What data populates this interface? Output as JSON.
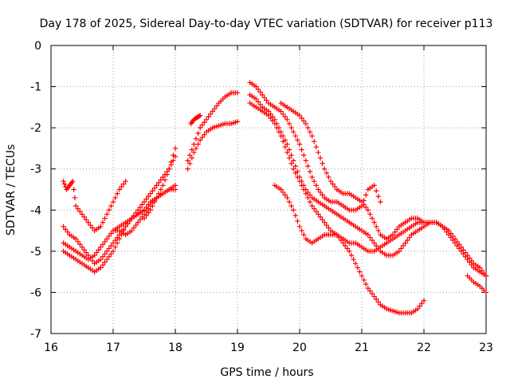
{
  "chart_data": {
    "type": "scatter",
    "title": "Day 178 of 2025, Sidereal Day-to-day VTEC variation (SDTVAR) for receiver p113",
    "xlabel": "GPS time / hours",
    "ylabel": "SDTVAR / TECUs",
    "xlim": [
      16,
      23
    ],
    "ylim": [
      -7,
      0
    ],
    "xticks": [
      16,
      17,
      18,
      19,
      20,
      21,
      22,
      23
    ],
    "yticks": [
      0,
      -1,
      -2,
      -3,
      -4,
      -5,
      -6,
      -7
    ],
    "xtick_labels": [
      "16",
      "17",
      "18",
      "19",
      "20",
      "21",
      "22",
      "23"
    ],
    "ytick_labels": [
      "0",
      "-1",
      "-2",
      "-3",
      "-4",
      "-5",
      "-6",
      "-7"
    ],
    "grid": true,
    "marker": "+",
    "color": "#ff0000",
    "series": [
      {
        "name": "s1",
        "x": [
          16.2,
          16.3,
          16.4,
          16.5,
          16.6,
          16.7,
          16.8,
          16.9,
          17.0,
          17.1,
          17.2,
          17.3,
          17.4,
          17.5,
          17.6,
          17.7,
          17.8,
          17.9,
          18.0
        ],
        "y": [
          -4.4,
          -4.6,
          -4.7,
          -4.9,
          -5.1,
          -5.3,
          -5.2,
          -5.0,
          -4.8,
          -4.6,
          -4.4,
          -4.2,
          -4.0,
          -3.8,
          -3.6,
          -3.4,
          -3.2,
          -3.0,
          -2.7
        ]
      },
      {
        "name": "s2",
        "x": [
          16.2,
          16.25,
          16.3,
          16.35,
          16.4,
          16.5,
          16.6,
          16.7,
          16.8,
          16.9,
          17.0,
          17.1,
          17.2
        ],
        "y": [
          -3.3,
          -3.5,
          -3.4,
          -3.3,
          -3.9,
          -4.1,
          -4.3,
          -4.5,
          -4.4,
          -4.1,
          -3.8,
          -3.5,
          -3.3
        ]
      },
      {
        "name": "s3",
        "x": [
          16.2,
          16.3,
          16.4,
          16.5,
          16.6,
          16.7,
          16.8,
          16.9,
          17.0,
          17.1,
          17.2,
          17.3,
          17.4,
          17.5,
          17.6,
          17.7,
          17.8,
          17.9,
          18.0
        ],
        "y": [
          -4.8,
          -4.9,
          -5.0,
          -5.1,
          -5.2,
          -5.1,
          -4.9,
          -4.7,
          -4.5,
          -4.4,
          -4.3,
          -4.2,
          -4.1,
          -4.0,
          -3.8,
          -3.7,
          -3.6,
          -3.5,
          -3.4
        ]
      },
      {
        "name": "s4",
        "x": [
          16.2,
          16.3,
          16.4,
          16.5,
          16.6,
          16.7,
          16.8,
          16.9,
          17.0,
          17.1,
          17.2,
          17.3,
          17.4,
          17.5
        ],
        "y": [
          -5.0,
          -5.1,
          -5.2,
          -5.3,
          -5.4,
          -5.5,
          -5.4,
          -5.2,
          -5.0,
          -4.7,
          -4.4,
          -4.2,
          -4.1,
          -4.0
        ]
      },
      {
        "name": "s5",
        "x": [
          17.0,
          17.1,
          17.2,
          17.3,
          17.4,
          17.5,
          17.6,
          17.7,
          17.8,
          17.9,
          18.0
        ],
        "y": [
          -4.5,
          -4.5,
          -4.6,
          -4.5,
          -4.3,
          -4.1,
          -3.9,
          -3.7,
          -3.6,
          -3.5,
          -3.5
        ]
      },
      {
        "name": "s6",
        "x": [
          17.5,
          17.6,
          17.7,
          17.8,
          17.9,
          18.0
        ],
        "y": [
          -4.2,
          -4.0,
          -3.7,
          -3.4,
          -3.0,
          -2.5
        ]
      },
      {
        "name": "s7",
        "x": [
          18.2,
          18.3,
          18.4,
          18.5,
          18.6,
          18.7,
          18.8,
          18.9,
          19.0
        ],
        "y": [
          -2.8,
          -2.4,
          -2.0,
          -1.8,
          -1.6,
          -1.4,
          -1.25,
          -1.15,
          -1.15
        ]
      },
      {
        "name": "s8",
        "x": [
          18.2,
          18.3,
          18.4,
          18.5,
          18.6,
          18.7,
          18.8,
          18.9,
          19.0
        ],
        "y": [
          -3.0,
          -2.6,
          -2.3,
          -2.1,
          -2.0,
          -1.95,
          -1.9,
          -1.9,
          -1.85
        ]
      },
      {
        "name": "s9",
        "x": [
          18.25,
          18.3,
          18.35,
          18.4
        ],
        "y": [
          -1.9,
          -1.8,
          -1.75,
          -1.7
        ]
      },
      {
        "name": "s10",
        "x": [
          19.2,
          19.3,
          19.4,
          19.5,
          19.6,
          19.7,
          19.8,
          19.9,
          20.0,
          20.1,
          20.2,
          20.3,
          20.4,
          20.5,
          20.6,
          20.7,
          20.8,
          20.9,
          21.0,
          21.1,
          21.2,
          21.3,
          21.4,
          21.5,
          21.6,
          21.7,
          21.8,
          21.9,
          22.0,
          22.1,
          22.2,
          22.3,
          22.4,
          22.5,
          22.6,
          22.7,
          22.8,
          22.9,
          23.0
        ],
        "y": [
          -1.2,
          -1.3,
          -1.5,
          -1.6,
          -1.8,
          -2.1,
          -2.4,
          -2.8,
          -3.2,
          -3.5,
          -3.7,
          -3.8,
          -3.9,
          -4.0,
          -4.1,
          -4.2,
          -4.3,
          -4.4,
          -4.5,
          -4.6,
          -4.8,
          -5.0,
          -5.1,
          -5.1,
          -5.0,
          -4.8,
          -4.6,
          -4.5,
          -4.4,
          -4.3,
          -4.3,
          -4.4,
          -4.5,
          -4.7,
          -4.9,
          -5.1,
          -5.3,
          -5.4,
          -5.6
        ]
      },
      {
        "name": "s11",
        "x": [
          19.2,
          19.3,
          19.4,
          19.5,
          19.6,
          19.7,
          19.8,
          19.9,
          20.0,
          20.1,
          20.2,
          20.3,
          20.4,
          20.5,
          20.6,
          20.7,
          20.8,
          20.9,
          21.0,
          21.1,
          21.2,
          21.3,
          21.4,
          21.5,
          21.6,
          21.7,
          21.8,
          21.9,
          22.0
        ],
        "y": [
          -1.4,
          -1.5,
          -1.6,
          -1.7,
          -1.9,
          -2.2,
          -2.6,
          -3.0,
          -3.3,
          -3.6,
          -3.9,
          -4.1,
          -4.3,
          -4.5,
          -4.6,
          -4.8,
          -5.0,
          -5.3,
          -5.6,
          -5.9,
          -6.1,
          -6.3,
          -6.4,
          -6.45,
          -6.5,
          -6.5,
          -6.5,
          -6.4,
          -6.2
        ]
      },
      {
        "name": "s12",
        "x": [
          19.2,
          19.3,
          19.4,
          19.5,
          19.6,
          19.7,
          19.8,
          19.9,
          20.0,
          20.1,
          20.2,
          20.3,
          20.4,
          20.5,
          20.6,
          20.7,
          20.8,
          20.9,
          21.0,
          21.1,
          21.2,
          21.3
        ],
        "y": [
          -0.9,
          -1.0,
          -1.2,
          -1.4,
          -1.5,
          -1.6,
          -1.8,
          -2.1,
          -2.4,
          -2.8,
          -3.2,
          -3.5,
          -3.7,
          -3.8,
          -3.8,
          -3.9,
          -4.0,
          -4.0,
          -3.9,
          -3.5,
          -3.4,
          -3.8
        ]
      },
      {
        "name": "s13",
        "x": [
          19.7,
          19.8,
          19.9,
          20.0,
          20.1,
          20.2,
          20.3,
          20.4,
          20.5,
          20.6,
          20.7,
          20.8,
          20.9,
          21.0,
          21.1,
          21.2,
          21.3,
          21.4,
          21.5,
          21.6,
          21.7,
          21.8,
          21.9,
          22.0
        ],
        "y": [
          -1.4,
          -1.5,
          -1.6,
          -1.7,
          -1.9,
          -2.2,
          -2.6,
          -3.0,
          -3.3,
          -3.5,
          -3.6,
          -3.6,
          -3.7,
          -3.8,
          -4.0,
          -4.3,
          -4.6,
          -4.7,
          -4.6,
          -4.4,
          -4.3,
          -4.2,
          -4.2,
          -4.3
        ]
      },
      {
        "name": "s14",
        "x": [
          19.6,
          19.7,
          19.8,
          19.9,
          20.0,
          20.1,
          20.2,
          20.3,
          20.4,
          20.5,
          20.6,
          20.7,
          20.8,
          20.9,
          21.0,
          21.1,
          21.2,
          21.3,
          21.4,
          21.5,
          21.6,
          21.7,
          21.8,
          21.9,
          22.0,
          22.1,
          22.2,
          22.3,
          22.4,
          22.5,
          22.6,
          22.7,
          22.8,
          22.9,
          23.0
        ],
        "y": [
          -3.4,
          -3.5,
          -3.7,
          -4.0,
          -4.4,
          -4.7,
          -4.8,
          -4.7,
          -4.6,
          -4.6,
          -4.6,
          -4.7,
          -4.8,
          -4.8,
          -4.9,
          -5.0,
          -5.0,
          -4.9,
          -4.8,
          -4.7,
          -4.6,
          -4.5,
          -4.4,
          -4.3,
          -4.3,
          -4.3,
          -4.3,
          -4.4,
          -4.6,
          -4.8,
          -5.0,
          -5.2,
          -5.4,
          -5.5,
          -5.6
        ]
      },
      {
        "name": "s15",
        "x": [
          22.7,
          22.8,
          22.9,
          23.0
        ],
        "y": [
          -5.6,
          -5.75,
          -5.85,
          -6.0
        ]
      }
    ]
  }
}
